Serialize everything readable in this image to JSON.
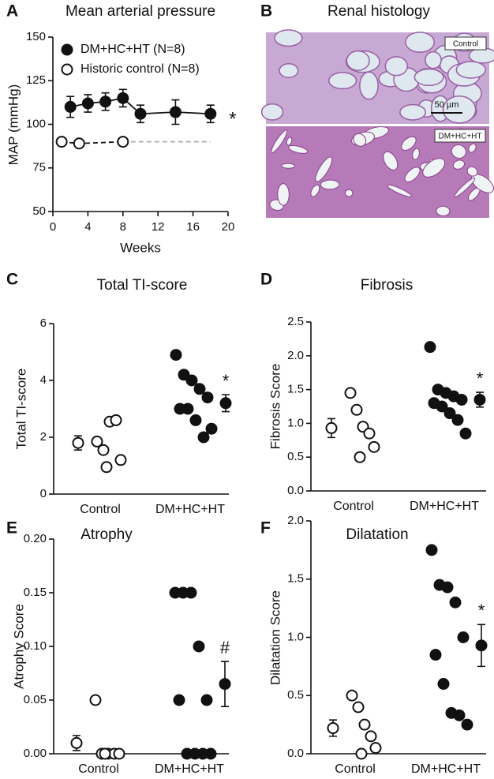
{
  "chart_data": [
    {
      "type": "line",
      "panel": "A",
      "title": "Mean arterial pressure",
      "x_label": "Weeks",
      "y_label": "MAP (mmHg)",
      "xlim": [
        0,
        20
      ],
      "xticks": [
        0,
        4,
        8,
        12,
        16,
        20
      ],
      "ylim": [
        50,
        150
      ],
      "yticks": [
        50,
        75,
        100,
        125,
        150
      ],
      "legend": "upper left",
      "series": [
        {
          "name": "DM+HC+HT (N=8)",
          "color": "#111111",
          "marker": "filled",
          "x": [
            2,
            4,
            6,
            8,
            10,
            14,
            18
          ],
          "values": [
            110,
            112,
            113,
            115,
            106,
            107,
            106
          ],
          "errors": [
            6,
            5,
            5,
            5,
            5,
            7,
            5
          ]
        },
        {
          "name": "Historic control (N=8)",
          "color": "#111111",
          "marker": "open",
          "dashed": true,
          "x": [
            1,
            3,
            8
          ],
          "values": [
            90,
            89,
            90
          ]
        }
      ],
      "reference_line": {
        "x": [
          8,
          18
        ],
        "values": [
          90,
          90
        ],
        "color": "#aaaaaa"
      },
      "annotation": "*"
    },
    {
      "type": "dot",
      "panel": "C",
      "title": "Total TI-score",
      "y_label": "Total TI-score",
      "categories": [
        "Control",
        "DM+HC+HT"
      ],
      "ylim": [
        0,
        6
      ],
      "yticks": [
        0,
        2,
        4,
        6
      ],
      "groups": [
        {
          "marker": "open",
          "values": [
            1.85,
            1.55,
            2.55,
            2.6,
            1.2,
            0.95
          ],
          "mean": 1.8,
          "error": 0.25
        },
        {
          "marker": "filled",
          "values": [
            4.9,
            4.2,
            4.0,
            3.7,
            3.4,
            3.0,
            3.0,
            2.6,
            2.0,
            2.3
          ],
          "mean": 3.2,
          "error": 0.3
        }
      ],
      "annotation": "*"
    },
    {
      "type": "dot",
      "panel": "D",
      "title": "Fibrosis",
      "y_label": "Fibrosis Score",
      "categories": [
        "Control",
        "DM+HC+HT"
      ],
      "ylim": [
        0,
        2.5
      ],
      "yticks": [
        {
          "value": 0,
          "label": "0.0"
        },
        0.5,
        {
          "value": 1,
          "label": "1.0"
        },
        1.5,
        {
          "value": 2,
          "label": "2.0"
        },
        2.5
      ],
      "groups": [
        {
          "marker": "open",
          "values": [
            1.45,
            1.2,
            0.95,
            0.85,
            0.65,
            0.5
          ],
          "mean": 0.93,
          "error": 0.14
        },
        {
          "marker": "filled",
          "values": [
            2.13,
            1.5,
            1.45,
            1.4,
            1.35,
            1.3,
            1.25,
            1.15,
            1.05,
            0.85
          ],
          "mean": 1.35,
          "error": 0.11
        }
      ],
      "annotation": "*"
    },
    {
      "type": "dot",
      "panel": "E",
      "title": "Atrophy",
      "y_label": "Atrophy Score",
      "categories": [
        "Control",
        "DM+HC+HT"
      ],
      "ylim": [
        0,
        0.2
      ],
      "yticks": [
        {
          "value": 0,
          "label": "0.00"
        },
        0.05,
        {
          "value": 0.1,
          "label": "0.10"
        },
        0.15,
        {
          "value": 0.2,
          "label": "0.20"
        }
      ],
      "groups": [
        {
          "marker": "open",
          "values": [
            0.05,
            0,
            0,
            0,
            0,
            0
          ],
          "mean": 0.01,
          "error": 0.007
        },
        {
          "marker": "filled",
          "values": [
            0.15,
            0.15,
            0.15,
            0.1,
            0.05,
            0.05,
            0,
            0,
            0,
            0
          ],
          "mean": 0.065,
          "error": 0.021
        }
      ],
      "annotation": "#"
    },
    {
      "type": "dot",
      "panel": "F",
      "title": "Dilatation",
      "y_label": "Dilatation Score",
      "categories": [
        "Control",
        "DM+HC+HT"
      ],
      "ylim": [
        0,
        2
      ],
      "yticks": [
        {
          "value": 0,
          "label": "0.0"
        },
        0.5,
        {
          "value": 1,
          "label": "1.0"
        },
        1.5,
        {
          "value": 2,
          "label": "2.0"
        }
      ],
      "groups": [
        {
          "marker": "open",
          "values": [
            0.5,
            0.4,
            0.25,
            0.15,
            0.05,
            0
          ],
          "mean": 0.22,
          "error": 0.07
        },
        {
          "marker": "filled",
          "values": [
            1.75,
            1.45,
            1.43,
            1.3,
            1.0,
            0.85,
            0.6,
            0.35,
            0.33,
            0.25
          ],
          "mean": 0.93,
          "error": 0.18
        }
      ],
      "annotation": "*"
    }
  ],
  "panel_b": {
    "panel": "B",
    "title": "Renal histology",
    "top_label": "Control",
    "scale_label": "50 µm",
    "bottom_label": "DM+HC+HT"
  }
}
